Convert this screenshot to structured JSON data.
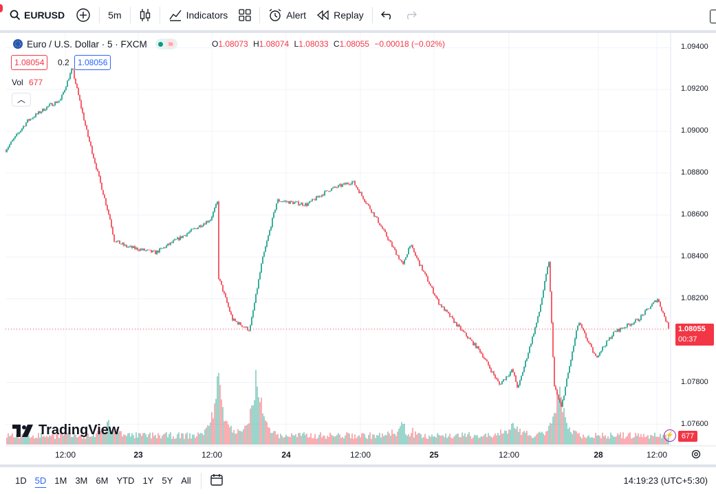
{
  "toolbar": {
    "symbol": "EURUSD",
    "interval": "5m",
    "indicators_label": "Indicators",
    "alert_label": "Alert",
    "replay_label": "Replay"
  },
  "legend": {
    "title": "Euro / U.S. Dollar · 5 · FXCM",
    "o_label": "O",
    "o": "1.08073",
    "h_label": "H",
    "h": "1.08074",
    "l_label": "L",
    "l": "1.08033",
    "c_label": "C",
    "c": "1.08055",
    "change": "−0.00018 (−0.02%)",
    "bid": "1.08054",
    "spread": "0.2",
    "ask": "1.08056",
    "vol_label": "Vol",
    "vol_value": "677"
  },
  "price_axis": [
    "1.09400",
    "1.09200",
    "1.09000",
    "1.08800",
    "1.08600",
    "1.08400",
    "1.08200",
    "1.07800",
    "1.07600"
  ],
  "time_axis": [
    "12:00",
    "23",
    "12:00",
    "24",
    "12:00",
    "25",
    "12:00",
    "28",
    "12:00"
  ],
  "last_price": {
    "price": "1.08055",
    "countdown": "00:37"
  },
  "last_volume": "677",
  "watermark": "TradingView",
  "ranges": [
    "1D",
    "5D",
    "1M",
    "3M",
    "6M",
    "YTD",
    "1Y",
    "5Y",
    "All"
  ],
  "active_range": "5D",
  "clock": "14:19:23 (UTC+5:30)",
  "colors": {
    "up": "#089981",
    "down": "#f23645",
    "accent": "#2962ff"
  },
  "chart_data": {
    "type": "line",
    "x": [
      "22 09:30",
      "22 11:00",
      "22 12:30",
      "22 14:30",
      "22 16:00",
      "22 19:00",
      "22 22:30",
      "23 02:00",
      "23 03:30",
      "23 07:00",
      "23 11:00",
      "23 12:00",
      "23 12:15",
      "23 15:00",
      "23 16:00",
      "23 19:00",
      "23 23:00",
      "24 04:00",
      "24 08:00",
      "24 11:30",
      "24 13:00",
      "24 16:00",
      "24 18:00",
      "24 22:00",
      "25 02:00",
      "25 06:00",
      "25 09:00",
      "25 12:00",
      "25 13:00",
      "25 17:00",
      "25 17:30",
      "25 18:00",
      "25 18:30",
      "25 22:00",
      "26 02:00",
      "26 06:00",
      "26 10:00",
      "26 12:00",
      "26 13:30"
    ],
    "close": [
      1.0891,
      1.0905,
      1.0912,
      1.0915,
      1.093,
      1.09,
      1.0858,
      1.0848,
      1.0845,
      1.0842,
      1.0858,
      1.0866,
      1.083,
      1.081,
      1.0805,
      1.0838,
      1.0867,
      1.0865,
      1.0872,
      1.0876,
      1.0858,
      1.0836,
      1.0846,
      1.0818,
      1.0806,
      1.0795,
      1.0779,
      1.0786,
      1.0777,
      1.0812,
      1.0838,
      1.0778,
      1.0768,
      1.0809,
      1.0792,
      1.0804,
      1.081,
      1.082,
      1.08055
    ],
    "ylim": [
      1.075,
      1.0947
    ],
    "volume_peaks": [
      {
        "x": "23 12:15",
        "value": 3400
      },
      {
        "x": "23 15:00",
        "value": 3400
      },
      {
        "x": "25 18:00",
        "value": 2800
      }
    ]
  }
}
